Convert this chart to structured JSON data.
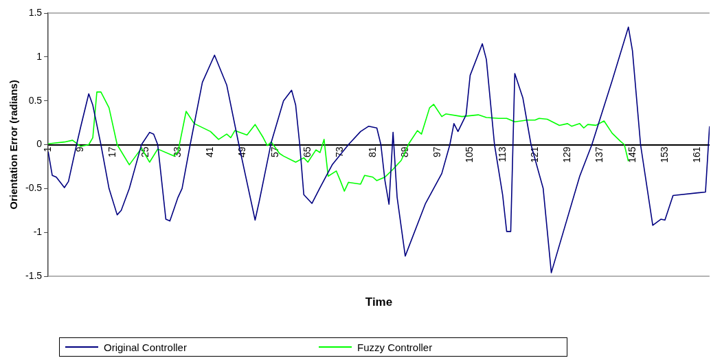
{
  "chart_data": {
    "type": "line",
    "xlabel": "Time",
    "ylabel": "Orientation Error (radians)",
    "xlim": [
      1,
      164
    ],
    "xticks": [
      1,
      9,
      17,
      25,
      33,
      41,
      49,
      57,
      65,
      73,
      81,
      89,
      97,
      105,
      113,
      121,
      129,
      137,
      145,
      153,
      161
    ],
    "ylim": [
      -1.5,
      1.5
    ],
    "yticks": [
      -1.5,
      -1,
      -0.5,
      0,
      0.5,
      1,
      1.5
    ],
    "legend": "bottom",
    "marker": "none",
    "line_style": "solid",
    "series": [
      {
        "name": "Original Controller",
        "color": "#000080",
        "x": [
          1,
          2,
          3,
          5,
          6,
          8,
          9,
          11,
          12,
          14,
          16,
          18,
          19,
          21,
          24,
          26,
          27,
          28,
          30,
          31,
          33,
          34,
          36,
          39,
          42,
          45,
          48,
          52,
          53,
          56,
          59,
          61,
          62,
          63,
          64,
          66,
          68,
          71,
          75,
          78,
          80,
          82,
          83,
          84,
          85,
          86,
          87,
          89,
          94,
          98,
          100,
          101,
          102,
          104,
          105,
          108,
          109,
          111,
          113,
          114,
          115,
          116,
          118,
          120,
          123,
          125,
          132,
          135,
          140,
          144,
          145,
          147,
          150,
          152,
          153,
          155,
          163,
          164
        ],
        "values": [
          -0.08,
          -0.35,
          -0.37,
          -0.49,
          -0.42,
          0,
          0.2,
          0.58,
          0.45,
          0,
          -0.5,
          -0.8,
          -0.75,
          -0.5,
          0,
          0.14,
          0.12,
          0,
          -0.85,
          -0.87,
          -0.6,
          -0.5,
          0,
          0.71,
          1.02,
          0.68,
          0,
          -0.86,
          -0.65,
          0.03,
          0.5,
          0.62,
          0.45,
          0,
          -0.57,
          -0.67,
          -0.49,
          -0.23,
          0,
          0.15,
          0.21,
          0.19,
          0,
          -0.41,
          -0.68,
          0.14,
          -0.6,
          -1.27,
          -0.67,
          -0.33,
          0,
          0.24,
          0.15,
          0.34,
          0.79,
          1.15,
          0.97,
          0,
          -0.57,
          -0.99,
          -0.99,
          0.81,
          0.53,
          0,
          -0.5,
          -1.46,
          -0.36,
          0,
          0.73,
          1.34,
          1.07,
          0,
          -0.92,
          -0.85,
          -0.86,
          -0.58,
          -0.54,
          0.21
        ]
      },
      {
        "name": "Fuzzy Controller",
        "color": "#00ff00",
        "x": [
          1,
          5,
          7,
          9,
          11,
          12,
          13,
          14,
          16,
          18,
          21,
          24,
          26,
          28,
          32,
          33,
          35,
          37,
          41,
          43,
          45,
          46,
          47,
          50,
          52,
          54,
          55,
          56,
          58,
          59,
          62,
          64,
          65,
          67,
          68,
          69,
          70,
          72,
          73,
          74,
          75,
          78,
          79,
          81,
          82,
          84,
          86,
          88,
          90,
          92,
          93,
          95,
          96,
          98,
          99,
          103,
          107,
          109,
          112,
          114,
          116,
          119,
          121,
          122,
          124,
          127,
          129,
          130,
          132,
          133,
          134,
          136,
          138,
          140,
          142,
          143,
          144
        ],
        "values": [
          0.01,
          0.03,
          0.05,
          -0.02,
          0,
          0.08,
          0.6,
          0.6,
          0.42,
          0,
          -0.23,
          -0.04,
          -0.2,
          -0.05,
          -0.13,
          -0.08,
          0.38,
          0.24,
          0.15,
          0.06,
          0.12,
          0.08,
          0.16,
          0.11,
          0.23,
          0.08,
          -0.01,
          0.03,
          -0.1,
          -0.13,
          -0.2,
          -0.15,
          -0.2,
          -0.06,
          -0.09,
          0.06,
          -0.36,
          -0.3,
          -0.41,
          -0.53,
          -0.43,
          -0.45,
          -0.35,
          -0.37,
          -0.41,
          -0.37,
          -0.28,
          -0.18,
          0.02,
          0.16,
          0.12,
          0.42,
          0.46,
          0.32,
          0.35,
          0.32,
          0.34,
          0.31,
          0.3,
          0.3,
          0.26,
          0.28,
          0.28,
          0.3,
          0.29,
          0.22,
          0.24,
          0.21,
          0.24,
          0.19,
          0.23,
          0.22,
          0.27,
          0.13,
          0.04,
          0,
          -0.19
        ]
      }
    ]
  }
}
